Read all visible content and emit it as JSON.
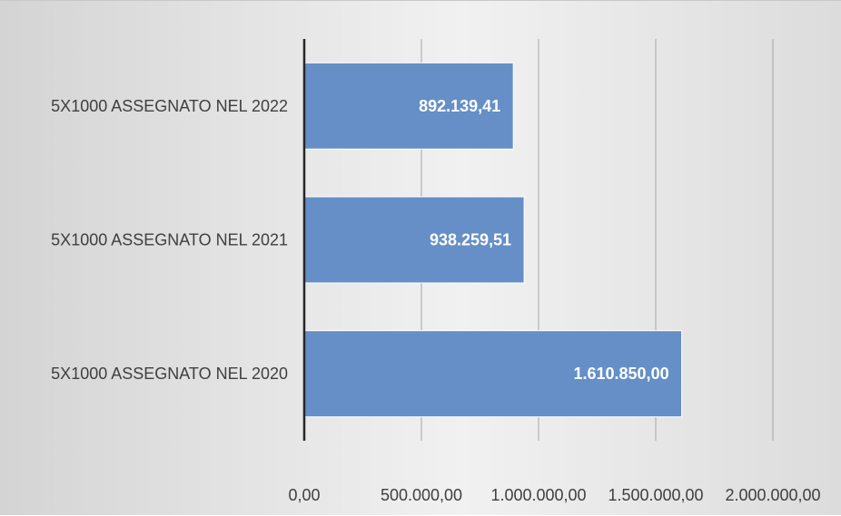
{
  "chart_data": {
    "type": "bar",
    "orientation": "horizontal",
    "categories": [
      "5X1000 ASSEGNATO NEL 2022",
      "5X1000 ASSEGNATO NEL 2021",
      "5X1000 ASSEGNATO NEL 2020"
    ],
    "values": [
      892139.41,
      938259.51,
      1610850.0
    ],
    "data_labels": [
      "892.139,41",
      "938.259,51",
      "1.610.850,00"
    ],
    "xlim": [
      0,
      2000000
    ],
    "ticks": [
      0,
      500000,
      1000000,
      1500000,
      2000000
    ],
    "tick_labels": [
      "0,00",
      "500.000,00",
      "1.000.000,00",
      "1.500.000,00",
      "2.000.000,00"
    ],
    "grid": true,
    "legend": "none",
    "colors": {
      "bar": "#658fc6",
      "bar_edge": "#ffffff",
      "grid": "#a6a6a6",
      "axis": "#262626"
    }
  }
}
